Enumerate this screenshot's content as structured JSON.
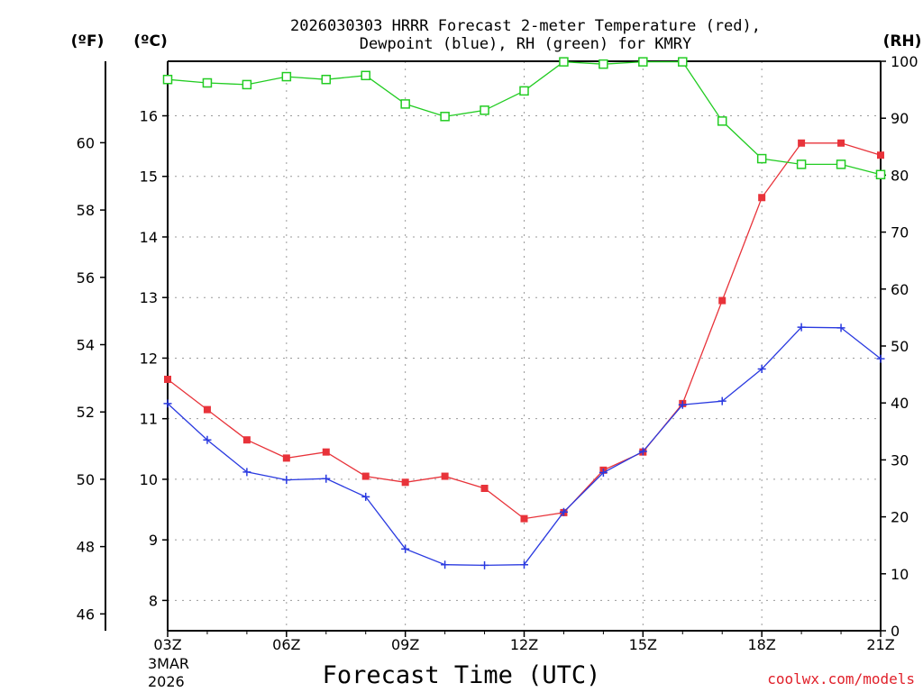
{
  "chart_data": {
    "type": "line",
    "title_line1": "2026030303 HRRR Forecast 2-meter Temperature (red),",
    "title_line2": "Dewpoint (blue), RH (green) for KMRY",
    "left_outer_axis_label": "(ºF)",
    "left_inner_axis_label": "(ºC)",
    "right_axis_label": "(RH)",
    "xlabel": "Forecast Time (UTC)",
    "date_line1": "3MAR",
    "date_line2": "2026",
    "credit": "coolwx.com/models",
    "celsius_range": [
      7.5,
      16.9
    ],
    "rh_range": [
      0,
      100
    ],
    "fahrenheit_ticks": [
      "46",
      "48",
      "50",
      "52",
      "54",
      "56",
      "58",
      "60"
    ],
    "celsius_ticks": [
      "8",
      "9",
      "10",
      "11",
      "12",
      "13",
      "14",
      "15",
      "16"
    ],
    "rh_ticks": [
      "0",
      "10",
      "20",
      "30",
      "40",
      "50",
      "60",
      "70",
      "80",
      "90",
      "100"
    ],
    "x_ticks": [
      {
        "hour": 0,
        "label": "03Z"
      },
      {
        "hour": 3,
        "label": "06Z"
      },
      {
        "hour": 6,
        "label": "09Z"
      },
      {
        "hour": 9,
        "label": "12Z"
      },
      {
        "hour": 12,
        "label": "15Z"
      },
      {
        "hour": 15,
        "label": "18Z"
      },
      {
        "hour": 18,
        "label": "21Z"
      }
    ],
    "x_range": [
      0,
      18
    ],
    "hours": [
      0,
      1,
      2,
      3,
      4,
      5,
      6,
      7,
      8,
      9,
      10,
      11,
      12,
      13,
      14,
      15,
      16,
      17,
      18
    ],
    "series": [
      {
        "name": "Temperature",
        "unit": "°C",
        "color": "#e8333a",
        "marker": "filled-square",
        "values": [
          11.65,
          11.15,
          10.65,
          10.35,
          10.45,
          10.05,
          9.95,
          10.05,
          9.85,
          9.35,
          9.45,
          10.15,
          10.45,
          11.25,
          12.95,
          14.65,
          15.55,
          15.55,
          15.35
        ]
      },
      {
        "name": "Dewpoint",
        "unit": "°C",
        "color": "#2a3ae0",
        "marker": "plus",
        "values": [
          11.25,
          10.65,
          10.12,
          9.99,
          10.01,
          9.71,
          8.85,
          8.59,
          8.58,
          8.59,
          9.46,
          10.11,
          10.46,
          11.23,
          11.29,
          11.82,
          12.51,
          12.5,
          11.99
        ]
      },
      {
        "name": "RH",
        "unit": "%",
        "color": "#22cc22",
        "marker": "open-square",
        "values": [
          96.8,
          96.2,
          95.9,
          97.3,
          96.8,
          97.5,
          92.5,
          90.3,
          91.4,
          94.8,
          99.9,
          99.5,
          99.9,
          99.9,
          89.5,
          82.9,
          81.9,
          81.9,
          80.1
        ]
      }
    ]
  }
}
